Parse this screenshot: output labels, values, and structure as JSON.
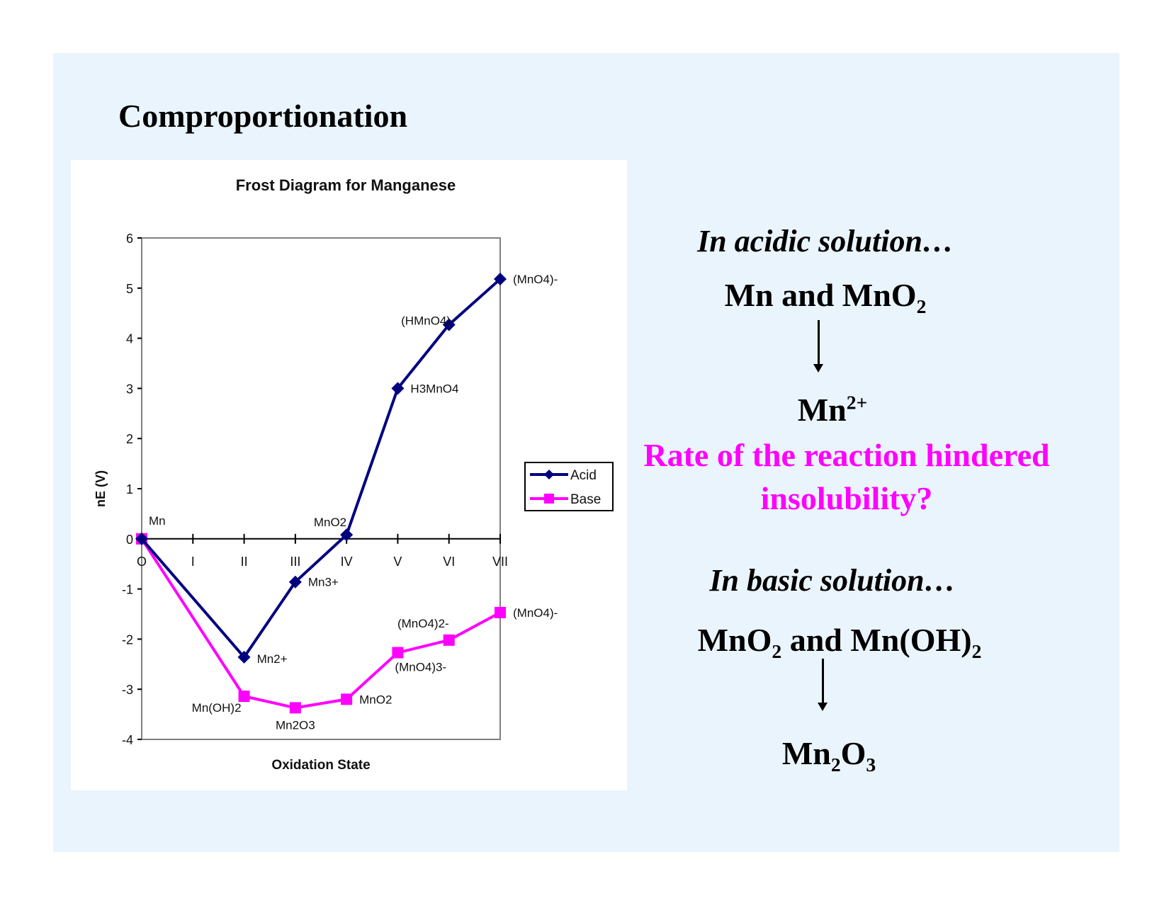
{
  "slide": {
    "title": "Comproportionation"
  },
  "colors": {
    "background": "#eaf4fc",
    "acid_series": "#00007f",
    "base_series": "#ff00ff",
    "highlight_text": "#ff00ff"
  },
  "chart_data": {
    "type": "line",
    "title": "Frost Diagram for Manganese",
    "xlabel": "Oxidation State",
    "ylabel": "nE (V)",
    "x_tick_labels": [
      "O",
      "I",
      "II",
      "III",
      "IV",
      "V",
      "VI",
      "VII"
    ],
    "y_ticks": [
      -4,
      -3,
      -2,
      -1,
      0,
      1,
      2,
      3,
      4,
      5,
      6
    ],
    "ylim": [
      -4,
      6
    ],
    "xlim": [
      0,
      7
    ],
    "legend_position": "right",
    "series": [
      {
        "name": "Acid",
        "marker": "diamond",
        "x": [
          0,
          2,
          3,
          4,
          5,
          6,
          7
        ],
        "y": [
          0,
          -2.36,
          -0.86,
          0.08,
          3.0,
          4.27,
          5.18
        ],
        "labels": [
          "Mn",
          "Mn2+",
          "Mn3+",
          "MnO2",
          "H3MnO4",
          "(HMnO4)-",
          "(MnO4)-"
        ]
      },
      {
        "name": "Base",
        "marker": "square",
        "x": [
          0,
          2,
          3,
          4,
          5,
          6,
          7
        ],
        "y": [
          0,
          -3.14,
          -3.37,
          -3.2,
          -2.27,
          -2.02,
          -1.47
        ],
        "labels": [
          "",
          "Mn(OH)2",
          "Mn2O3",
          "MnO2",
          "(MnO4)3-",
          "(MnO4)2-",
          "(MnO4)-"
        ]
      }
    ]
  },
  "right_text": {
    "acidic_heading": "In acidic solution…",
    "acidic_reactants": {
      "pre": "Mn and MnO",
      "sub": "2"
    },
    "acidic_product": {
      "base": "Mn",
      "sup": "2+"
    },
    "note_line1": "Rate of the reaction hindered",
    "note_line2": "insolubility?",
    "basic_heading": "In basic solution…",
    "basic_reactants": {
      "pre": "MnO",
      "sub1": "2",
      "mid": " and Mn(OH)",
      "sub2": "2"
    },
    "basic_product": {
      "a": "Mn",
      "sub1": "2",
      "b": "O",
      "sub2": "3"
    }
  }
}
